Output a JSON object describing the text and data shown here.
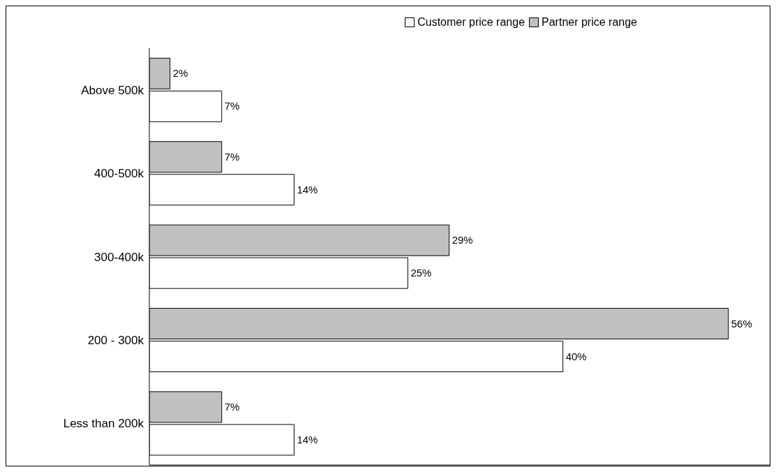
{
  "chart_data": {
    "type": "bar",
    "orientation": "horizontal",
    "categories": [
      "Above 500k",
      "400-500k",
      "300-400k",
      "200 - 300k",
      "Less than 200k"
    ],
    "series": [
      {
        "name": "Customer price range",
        "color": "#ffffff",
        "values": [
          7,
          14,
          25,
          40,
          14
        ],
        "value_labels": [
          "7%",
          "14%",
          "25%",
          "40%",
          "14%"
        ]
      },
      {
        "name": "Partner price range",
        "color": "#c0c0c0",
        "values": [
          2,
          7,
          29,
          56,
          7
        ],
        "value_labels": [
          "2%",
          "7%",
          "29%",
          "56%",
          "7%"
        ]
      }
    ],
    "xlim": [
      0,
      60
    ],
    "tick_labels": "y",
    "legend": "top right"
  }
}
